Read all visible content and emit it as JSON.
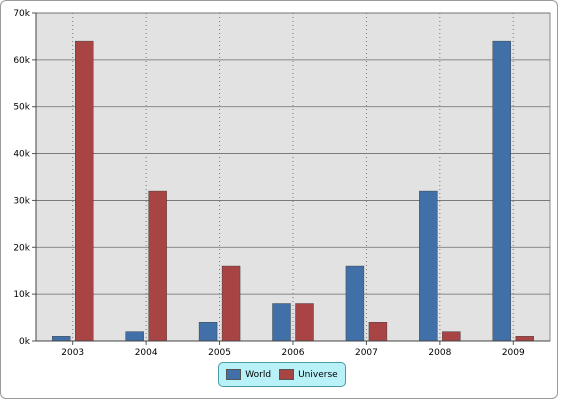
{
  "chart_data": {
    "type": "bar",
    "title": "",
    "xlabel": "",
    "ylabel": "",
    "categories": [
      "2003",
      "2004",
      "2005",
      "2006",
      "2007",
      "2008",
      "2009"
    ],
    "series": [
      {
        "name": "World",
        "color": "#4170a8",
        "values": [
          1000,
          2000,
          4000,
          8000,
          16000,
          32000,
          64000
        ]
      },
      {
        "name": "Universe",
        "color": "#a84444",
        "values": [
          64000,
          32000,
          16000,
          8000,
          4000,
          2000,
          1000
        ]
      }
    ],
    "ylim": [
      0,
      70000
    ],
    "yticks": [
      0,
      10000,
      20000,
      30000,
      40000,
      50000,
      60000,
      70000
    ],
    "ytick_labels": [
      "0k",
      "10k",
      "20k",
      "30k",
      "40k",
      "50k",
      "60k",
      "70k"
    ],
    "grid": {
      "horizontal": true,
      "vertical_dotted": true
    },
    "legend_position": "bottom-center",
    "plot_background": "#e2e2e2"
  }
}
